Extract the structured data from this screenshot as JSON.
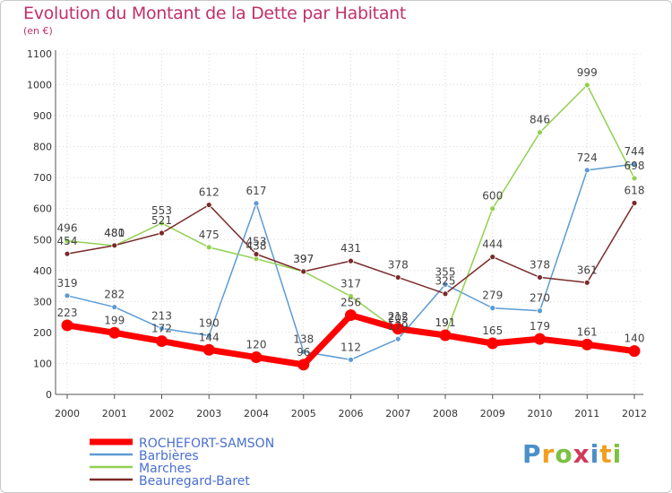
{
  "title": "Evolution du Montant de la Dette par Habitant",
  "subtitle": "(en €)",
  "logo": [
    "P",
    "r",
    "o",
    "x",
    "i",
    "t",
    "i"
  ],
  "chart_data": {
    "type": "line",
    "x": [
      "2000",
      "2001",
      "2002",
      "2003",
      "2004",
      "2005",
      "2006",
      "2007",
      "2008",
      "2009",
      "2010",
      "2011",
      "2012"
    ],
    "ylim": [
      0,
      1100
    ],
    "yticks": [
      0,
      100,
      200,
      300,
      400,
      500,
      600,
      700,
      800,
      900,
      1000,
      1100
    ],
    "grid": true,
    "legend_position": "bottom-left",
    "series": [
      {
        "name": "ROCHEFORT-SAMSON",
        "color": "#ff0000",
        "width": 7,
        "values": [
          223,
          199,
          172,
          144,
          120,
          96,
          256,
          212,
          191,
          165,
          179,
          161,
          140
        ],
        "labels": [
          "223",
          "199",
          "172",
          "144",
          "120",
          "96",
          "256",
          "212",
          "191",
          "165",
          "179",
          "161",
          "140"
        ]
      },
      {
        "name": "Barbières",
        "color": "#5b9bd5",
        "width": 1.5,
        "values": [
          319,
          282,
          213,
          190,
          617,
          138,
          112,
          179,
          355,
          279,
          270,
          724,
          744
        ],
        "labels": [
          "319",
          "282",
          "213",
          "190",
          "617",
          "138",
          "112",
          "179",
          "355",
          "279",
          "270",
          "724",
          "744"
        ]
      },
      {
        "name": "Marches",
        "color": "#92d050",
        "width": 1.5,
        "values": [
          496,
          480,
          553,
          475,
          438,
          397,
          317,
          205,
          191,
          600,
          846,
          999,
          698
        ],
        "labels": [
          "496",
          "480",
          "553",
          "475",
          "438",
          "397",
          "317",
          "205",
          "191",
          "600",
          "846",
          "999",
          "698"
        ]
      },
      {
        "name": "Beauregard-Baret",
        "color": "#7a2a2a",
        "width": 1.5,
        "values": [
          454,
          481,
          521,
          612,
          453,
          397,
          431,
          378,
          325,
          444,
          378,
          361,
          618
        ],
        "labels": [
          "454",
          "481",
          "521",
          "612",
          "453",
          "397",
          "431",
          "378",
          "325",
          "444",
          "378",
          "361",
          "618"
        ]
      }
    ]
  }
}
